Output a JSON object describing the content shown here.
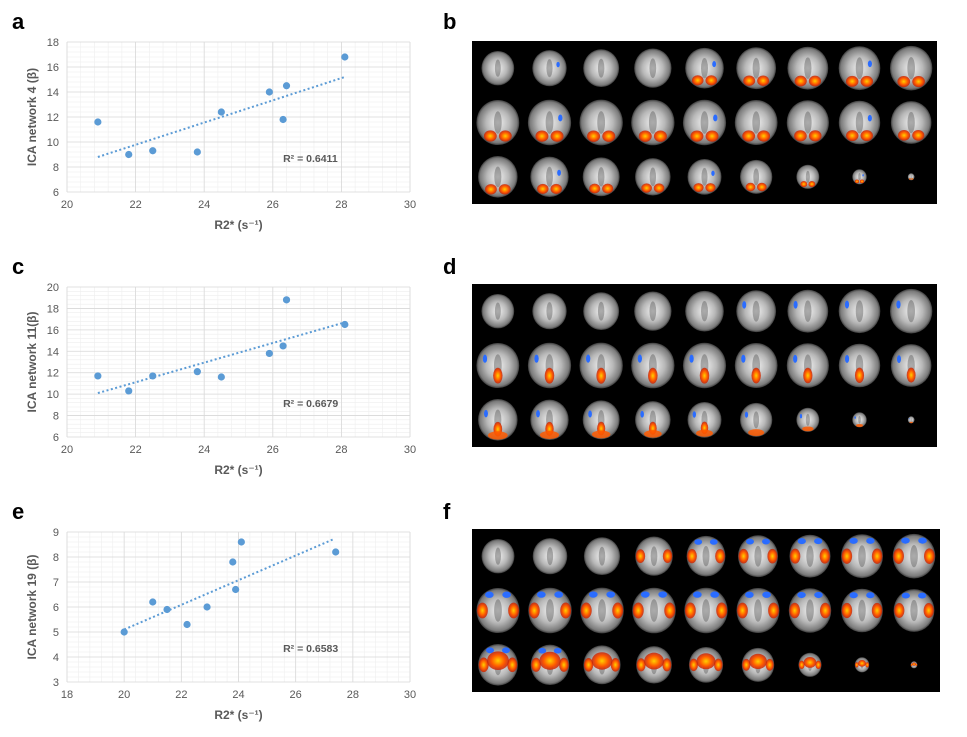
{
  "panels": {
    "a": "a",
    "b": "b",
    "c": "c",
    "d": "d",
    "e": "e",
    "f": "f"
  },
  "chart_data": [
    {
      "type": "scatter",
      "title": "",
      "xlabel": "R2* (s⁻¹)",
      "ylabel": "ICA network 4 (β)",
      "xlim": [
        20,
        30
      ],
      "ylim": [
        6,
        18
      ],
      "xticks": [
        20,
        22,
        24,
        26,
        28,
        30
      ],
      "yticks": [
        6,
        8,
        10,
        12,
        14,
        16,
        18
      ],
      "x": [
        20.9,
        21.8,
        22.5,
        23.8,
        24.5,
        25.9,
        26.3,
        26.4,
        28.1
      ],
      "y": [
        11.6,
        9.0,
        9.3,
        9.2,
        12.4,
        14.0,
        11.8,
        14.5,
        16.8
      ],
      "trendline": {
        "x": [
          20.9,
          28.1
        ],
        "y": [
          8.8,
          15.2
        ]
      },
      "r2_label": "R² = 0.6411",
      "marker_color": "#5B9BD5",
      "trend_color": "#5B9BD5"
    },
    {
      "type": "scatter",
      "title": "",
      "xlabel": "R2* (s⁻¹)",
      "ylabel": "ICA network 11(β)",
      "xlim": [
        20,
        30
      ],
      "ylim": [
        6,
        20
      ],
      "xticks": [
        20,
        22,
        24,
        26,
        28,
        30
      ],
      "yticks": [
        6,
        8,
        10,
        12,
        14,
        16,
        18,
        20
      ],
      "x": [
        20.9,
        21.8,
        22.5,
        23.8,
        24.5,
        25.9,
        26.3,
        26.4,
        28.1
      ],
      "y": [
        11.7,
        10.3,
        11.7,
        12.1,
        11.6,
        13.8,
        14.5,
        18.8,
        16.5
      ],
      "trendline": {
        "x": [
          20.9,
          28.1
        ],
        "y": [
          10.1,
          16.7
        ]
      },
      "r2_label": "R² = 0.6679",
      "marker_color": "#5B9BD5",
      "trend_color": "#5B9BD5"
    },
    {
      "type": "scatter",
      "title": "",
      "xlabel": "R2* (s⁻¹)",
      "ylabel": "ICA network 19 (β)",
      "xlim": [
        18,
        30
      ],
      "ylim": [
        3,
        9
      ],
      "xticks": [
        18,
        20,
        22,
        24,
        26,
        28,
        30
      ],
      "yticks": [
        3,
        4,
        5,
        6,
        7,
        8,
        9
      ],
      "x": [
        20.0,
        21.0,
        21.5,
        22.2,
        22.9,
        23.8,
        23.9,
        24.1,
        27.4
      ],
      "y": [
        5.0,
        6.2,
        5.9,
        5.3,
        6.0,
        7.8,
        6.7,
        8.6,
        8.2
      ],
      "trendline": {
        "x": [
          20.0,
          27.3
        ],
        "y": [
          5.1,
          8.7
        ]
      },
      "r2_label": "R² = 0.6583",
      "marker_color": "#5B9BD5",
      "trend_color": "#5B9BD5"
    }
  ],
  "brain_panels": [
    {
      "rows": 3,
      "cols": 9,
      "pattern": "posterior-occipital"
    },
    {
      "rows": 3,
      "cols": 9,
      "pattern": "medial-posterior"
    },
    {
      "rows": 3,
      "cols": 9,
      "pattern": "lateral-temporal"
    }
  ],
  "colors": {
    "positive": "#ff5a00",
    "positive_core": "#ffd000",
    "negative": "#2a6cff",
    "background": "#000000",
    "grid_major": "#d9d9d9",
    "grid_minor": "#eeeeee",
    "axis_text": "#595959"
  }
}
